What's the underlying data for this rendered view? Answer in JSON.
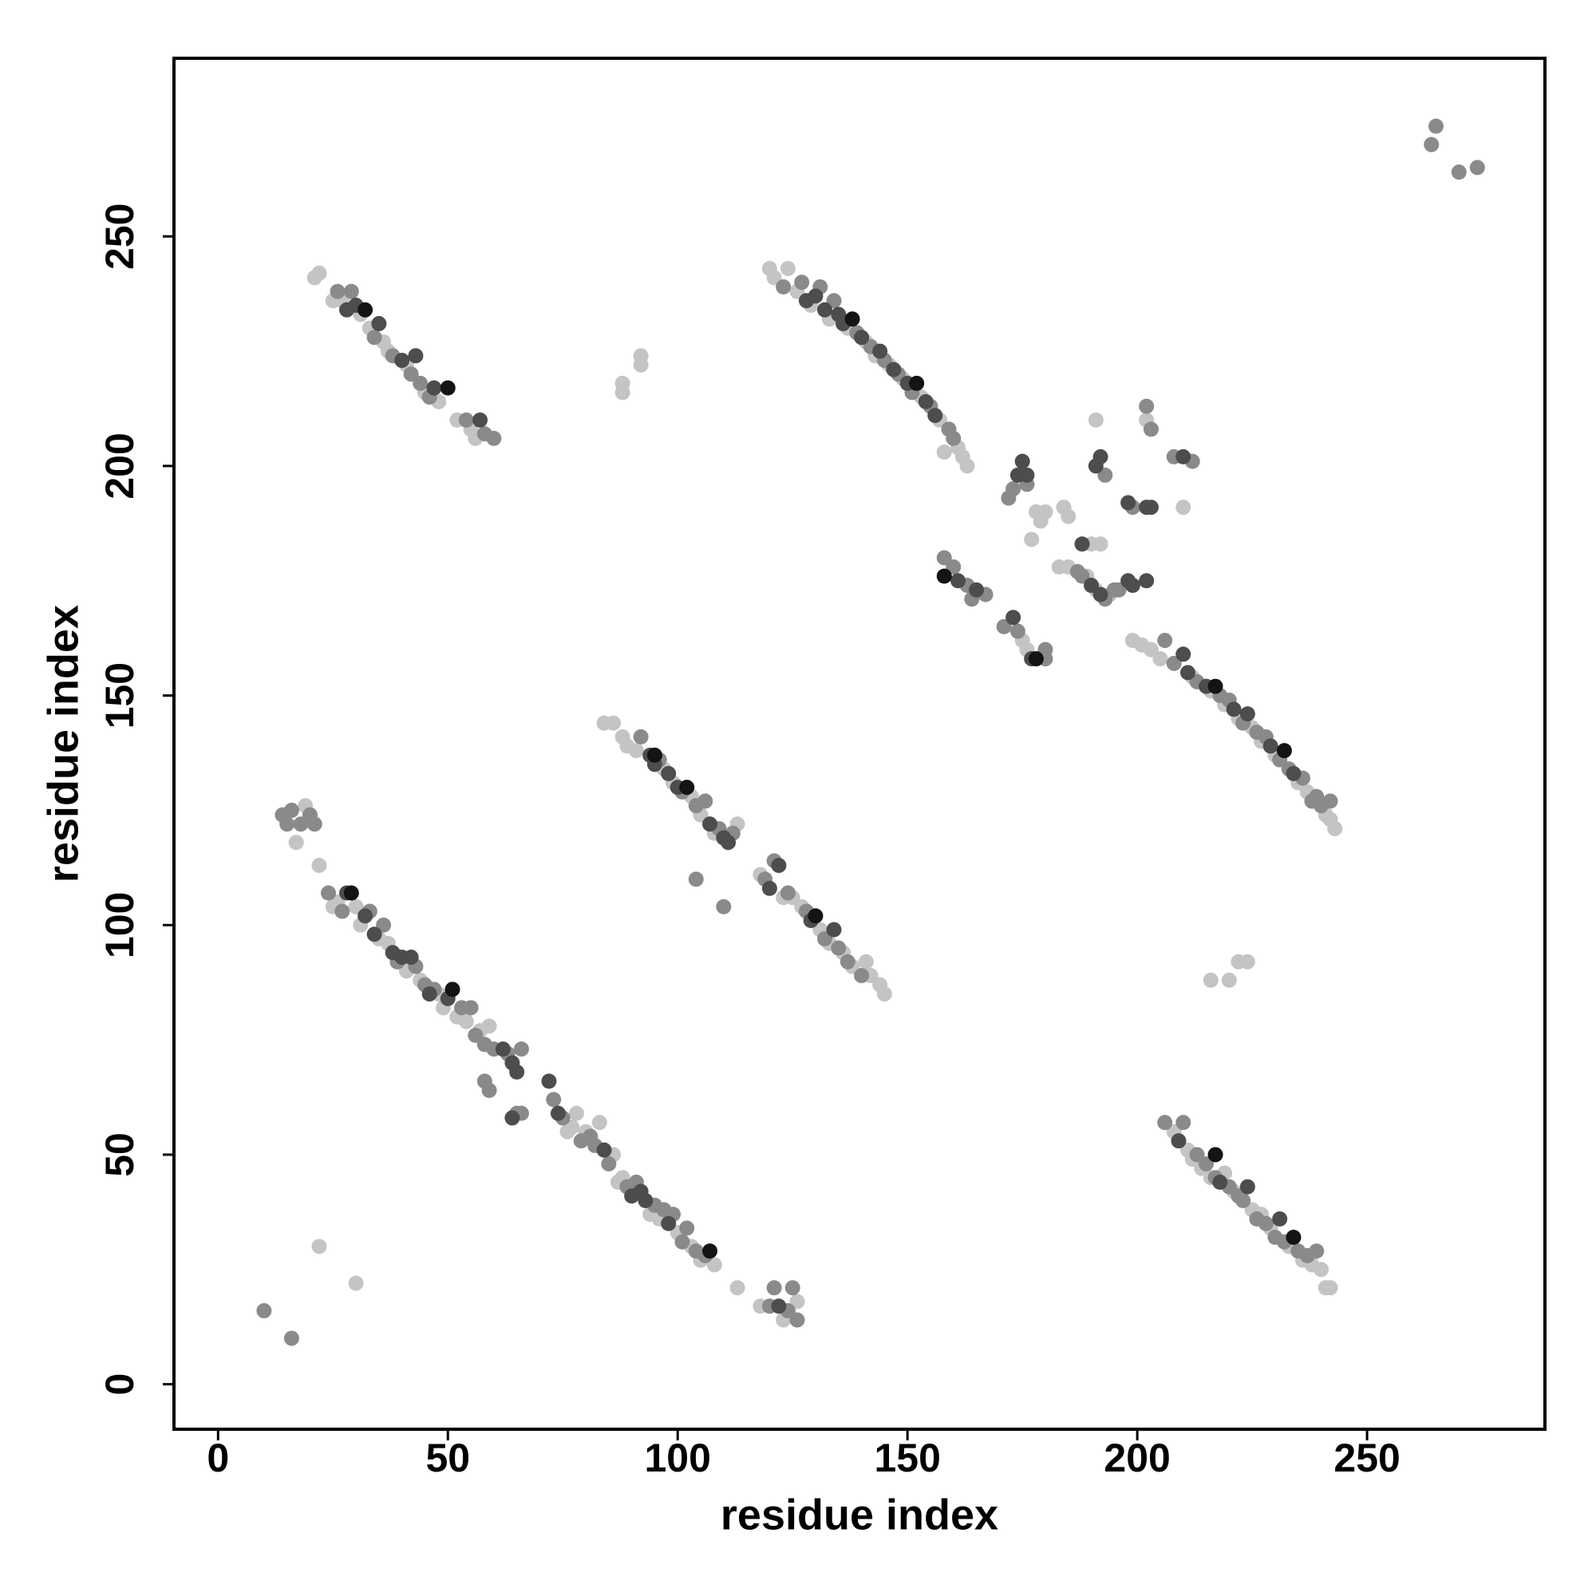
{
  "chart_data": {
    "type": "scatter",
    "xlabel": "residue index",
    "ylabel": "residue index",
    "xlim": [
      -9.6,
      288.7
    ],
    "ylim": [
      -9.8,
      288.8
    ],
    "xticks": [
      0,
      50,
      100,
      150,
      200,
      250
    ],
    "yticks": [
      0,
      50,
      100,
      150,
      200,
      250
    ],
    "series": [
      {
        "color": "#c4c4c4",
        "x": [
          21,
          22,
          25,
          27,
          31,
          33,
          36,
          37,
          41,
          45,
          48,
          52,
          55,
          56,
          120,
          121,
          124,
          126,
          129,
          133,
          137,
          141,
          143,
          146,
          149,
          153,
          157,
          158,
          161,
          162,
          163,
          177,
          178,
          179,
          180,
          184,
          185,
          190,
          192,
          191,
          202,
          210,
          183,
          185,
          189,
          191,
          194,
          176,
          175,
          199,
          201,
          203,
          205,
          212,
          216,
          219,
          222,
          225,
          227,
          230,
          235,
          237,
          241,
          242,
          243,
          84,
          86,
          88,
          89,
          91,
          97,
          99,
          103,
          105,
          108,
          113,
          118,
          123,
          125,
          127,
          131,
          133,
          136,
          138,
          141,
          142,
          144,
          145,
          88,
          88,
          92,
          92,
          17,
          19,
          22,
          25,
          26,
          30,
          31,
          35,
          37,
          41,
          44,
          48,
          49,
          52,
          54,
          57,
          59,
          76,
          77,
          78,
          80,
          83,
          86,
          87,
          88,
          94,
          96,
          100,
          103,
          105,
          108,
          113,
          118,
          123,
          126,
          208,
          211,
          212,
          214,
          216,
          219,
          221,
          225,
          227,
          229,
          233,
          236,
          238,
          240,
          241,
          242,
          22,
          30,
          216,
          220,
          222,
          224
        ],
        "values": [
          241,
          242,
          236,
          236,
          233,
          230,
          227,
          225,
          222,
          216,
          214,
          210,
          208,
          206,
          243,
          241,
          243,
          238,
          235,
          232,
          230,
          227,
          224,
          222,
          219,
          215,
          210,
          203,
          204,
          202,
          200,
          184,
          190,
          188,
          190,
          191,
          189,
          183,
          183,
          210,
          210,
          191,
          178,
          178,
          176,
          173,
          172,
          160,
          162,
          162,
          161,
          160,
          158,
          154,
          151,
          148,
          145,
          143,
          140,
          137,
          131,
          129,
          124,
          123,
          121,
          144,
          144,
          141,
          139,
          138,
          134,
          131,
          128,
          124,
          120,
          122,
          111,
          106,
          106,
          104,
          99,
          96,
          94,
          91,
          92,
          89,
          87,
          85,
          218,
          216,
          222,
          224,
          118,
          126,
          113,
          104,
          105,
          104,
          100,
          97,
          96,
          90,
          88,
          85,
          82,
          80,
          79,
          77,
          78,
          55,
          56,
          59,
          55,
          57,
          50,
          44,
          45,
          37,
          36,
          33,
          30,
          27,
          26,
          21,
          17,
          14,
          18,
          55,
          51,
          49,
          47,
          45,
          46,
          42,
          38,
          37,
          34,
          30,
          27,
          26,
          25,
          21,
          21,
          30,
          22,
          88,
          88,
          92,
          92
        ]
      },
      {
        "color": "#8a8a8a",
        "x": [
          26,
          29,
          34,
          38,
          42,
          44,
          46,
          54,
          58,
          60,
          123,
          127,
          131,
          134,
          139,
          142,
          145,
          148,
          151,
          155,
          159,
          160,
          172,
          173,
          176,
          202,
          203,
          193,
          208,
          212,
          199,
          158,
          160,
          163,
          164,
          167,
          171,
          174,
          180,
          180,
          187,
          188,
          193,
          195,
          196,
          206,
          208,
          213,
          218,
          220,
          223,
          226,
          228,
          231,
          233,
          236,
          238,
          239,
          240,
          242,
          92,
          96,
          101,
          104,
          106,
          109,
          112,
          119,
          121,
          124,
          128,
          132,
          135,
          137,
          140,
          104,
          110,
          14,
          15,
          16,
          18,
          20,
          21,
          24,
          27,
          33,
          36,
          39,
          43,
          45,
          47,
          53,
          55,
          56,
          58,
          60,
          63,
          66,
          58,
          59,
          65,
          66,
          73,
          75,
          79,
          81,
          82,
          85,
          89,
          91,
          95,
          97,
          99,
          101,
          102,
          104,
          106,
          120,
          121,
          124,
          125,
          126,
          206,
          210,
          213,
          215,
          217,
          220,
          222,
          223,
          226,
          228,
          230,
          232,
          235,
          237,
          239,
          10,
          16,
          264,
          265,
          270,
          274
        ],
        "values": [
          238,
          238,
          228,
          224,
          220,
          218,
          215,
          210,
          207,
          206,
          239,
          240,
          239,
          236,
          229,
          226,
          223,
          220,
          216,
          213,
          208,
          206,
          193,
          195,
          196,
          213,
          208,
          198,
          202,
          201,
          191,
          180,
          178,
          174,
          171,
          172,
          165,
          164,
          160,
          158,
          177,
          176,
          171,
          173,
          173,
          162,
          157,
          153,
          150,
          149,
          144,
          142,
          141,
          136,
          134,
          132,
          127,
          128,
          126,
          127,
          141,
          136,
          129,
          126,
          127,
          121,
          120,
          110,
          114,
          107,
          103,
          97,
          95,
          92,
          89,
          110,
          104,
          124,
          122,
          125,
          122,
          124,
          122,
          107,
          103,
          103,
          100,
          92,
          91,
          87,
          86,
          82,
          82,
          76,
          74,
          73,
          72,
          73,
          66,
          64,
          59,
          59,
          62,
          58,
          53,
          54,
          52,
          48,
          43,
          44,
          39,
          38,
          37,
          31,
          34,
          29,
          28,
          17,
          21,
          16,
          21,
          14,
          57,
          57,
          50,
          48,
          45,
          43,
          41,
          40,
          36,
          35,
          32,
          31,
          29,
          28,
          29,
          16,
          10,
          270,
          274,
          264,
          265
        ]
      },
      {
        "color": "#4d4d4d",
        "x": [
          28,
          30,
          35,
          40,
          43,
          47,
          57,
          128,
          130,
          132,
          135,
          136,
          140,
          144,
          147,
          150,
          154,
          156,
          174,
          175,
          176,
          191,
          192,
          198,
          202,
          203,
          210,
          161,
          165,
          173,
          177,
          188,
          190,
          192,
          198,
          199,
          202,
          210,
          211,
          215,
          221,
          224,
          229,
          234,
          94,
          95,
          98,
          100,
          107,
          110,
          111,
          120,
          122,
          129,
          134,
          28,
          32,
          34,
          38,
          40,
          42,
          46,
          50,
          62,
          64,
          65,
          64,
          72,
          74,
          84,
          90,
          92,
          93,
          98,
          122,
          209,
          218,
          224,
          231
        ],
        "values": [
          234,
          235,
          231,
          223,
          224,
          217,
          210,
          236,
          237,
          234,
          233,
          231,
          228,
          225,
          221,
          218,
          214,
          211,
          198,
          201,
          198,
          200,
          202,
          192,
          191,
          191,
          202,
          175,
          173,
          167,
          158,
          183,
          174,
          172,
          175,
          174,
          175,
          159,
          155,
          152,
          147,
          146,
          139,
          133,
          137,
          135,
          133,
          130,
          122,
          119,
          118,
          108,
          113,
          101,
          99,
          107,
          102,
          98,
          94,
          93,
          93,
          85,
          84,
          73,
          70,
          68,
          58,
          66,
          59,
          51,
          41,
          42,
          40,
          35,
          17,
          53,
          44,
          43,
          36
        ]
      },
      {
        "color": "#141414",
        "x": [
          32,
          50,
          138,
          152,
          217,
          232,
          102,
          130,
          29,
          107,
          217,
          234,
          178,
          158,
          51,
          95
        ],
        "values": [
          234,
          217,
          232,
          218,
          152,
          138,
          130,
          102,
          107,
          29,
          50,
          32,
          158,
          176,
          86,
          137
        ]
      }
    ]
  }
}
